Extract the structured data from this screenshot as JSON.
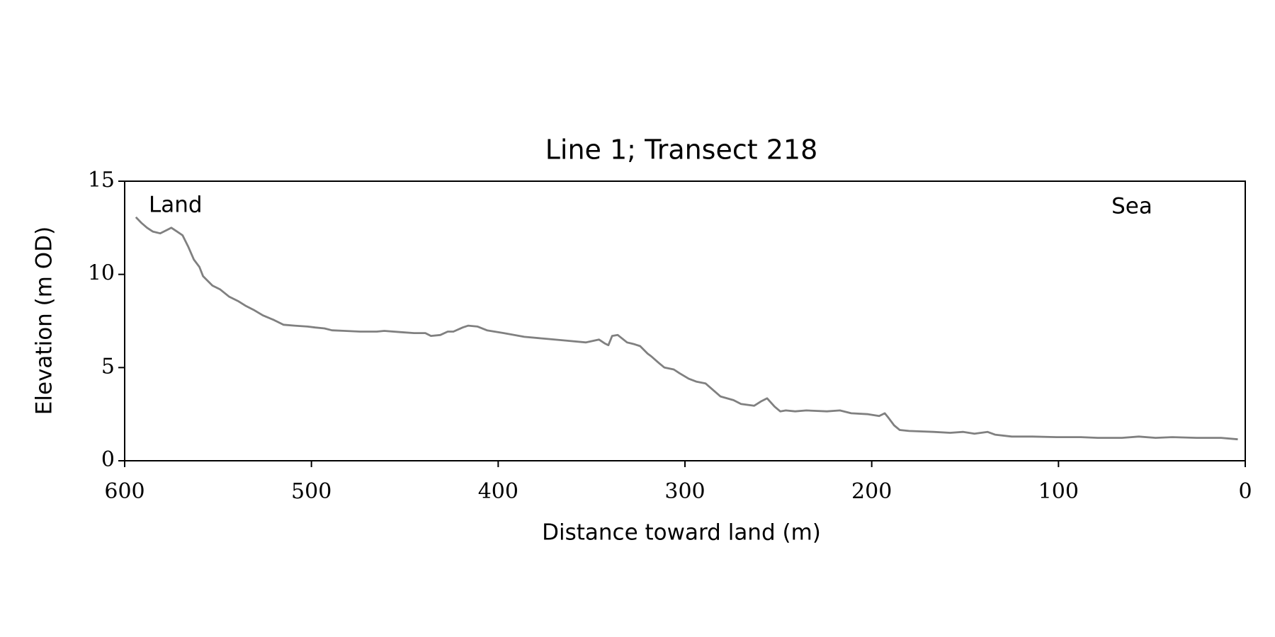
{
  "chart_data": {
    "type": "line",
    "title": "Line 1; Transect 218",
    "xlabel": "Distance toward land (m)",
    "ylabel": "Elevation (m OD)",
    "annotations": [
      {
        "text": "Land"
      },
      {
        "text": "Sea"
      }
    ],
    "x": [
      594,
      591,
      588,
      585,
      581,
      577,
      575,
      572,
      569,
      566,
      563,
      560,
      558,
      553,
      549,
      544,
      539,
      535,
      531,
      526,
      520,
      515,
      509,
      502,
      498,
      493,
      489,
      482,
      474,
      465,
      461,
      452,
      445,
      439,
      436,
      431,
      427,
      424,
      419,
      416,
      411,
      406,
      397,
      386,
      375,
      364,
      353,
      346,
      343,
      341,
      339,
      336,
      331,
      327,
      324,
      320,
      318,
      314,
      311,
      306,
      303,
      298,
      294,
      289,
      285,
      281,
      274,
      270,
      263,
      259,
      256,
      252,
      249,
      246,
      241,
      235,
      224,
      217,
      211,
      202,
      196,
      193,
      191,
      188,
      185,
      180,
      175,
      167,
      158,
      151,
      145,
      138,
      134,
      125,
      114,
      101,
      88,
      79,
      66,
      57,
      48,
      39,
      26,
      13,
      4
    ],
    "series": [
      {
        "name": "Elevation",
        "color": "#808080",
        "values": [
          13.07,
          12.76,
          12.5,
          12.3,
          12.2,
          12.4,
          12.5,
          12.3,
          12.1,
          11.5,
          10.8,
          10.4,
          9.9,
          9.4,
          9.2,
          8.8,
          8.55,
          8.3,
          8.1,
          7.8,
          7.55,
          7.3,
          7.25,
          7.2,
          7.15,
          7.1,
          7.0,
          6.97,
          6.93,
          6.93,
          6.97,
          6.9,
          6.85,
          6.85,
          6.7,
          6.75,
          6.93,
          6.93,
          7.15,
          7.25,
          7.2,
          7.0,
          6.85,
          6.65,
          6.55,
          6.45,
          6.35,
          6.5,
          6.3,
          6.2,
          6.7,
          6.75,
          6.35,
          6.25,
          6.15,
          5.75,
          5.6,
          5.25,
          5.0,
          4.9,
          4.7,
          4.4,
          4.25,
          4.15,
          3.8,
          3.45,
          3.25,
          3.05,
          2.95,
          3.2,
          3.35,
          2.9,
          2.65,
          2.7,
          2.65,
          2.7,
          2.65,
          2.7,
          2.55,
          2.5,
          2.4,
          2.55,
          2.3,
          1.9,
          1.65,
          1.6,
          1.58,
          1.55,
          1.5,
          1.55,
          1.45,
          1.55,
          1.4,
          1.3,
          1.3,
          1.27,
          1.27,
          1.23,
          1.23,
          1.3,
          1.23,
          1.27,
          1.23,
          1.23,
          1.15
        ]
      }
    ],
    "xlim": [
      600,
      0
    ],
    "xticks": [
      600,
      500,
      400,
      300,
      200,
      100,
      0
    ],
    "ylim": [
      0,
      15
    ],
    "yticks": [
      0,
      5,
      10,
      15
    ]
  }
}
